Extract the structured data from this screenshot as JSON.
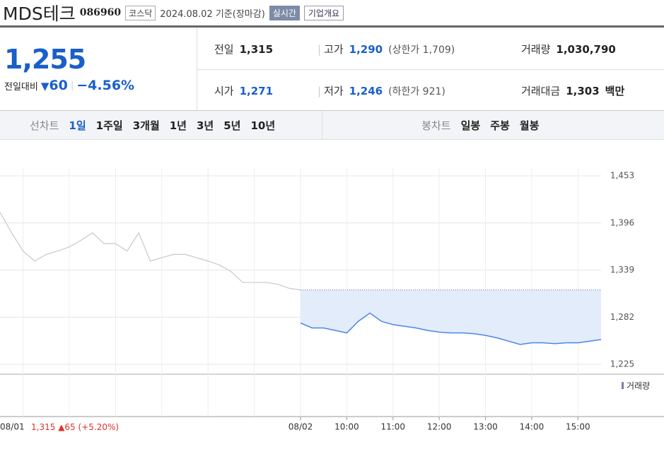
{
  "header": {
    "name": "MDS테크",
    "code": "086960",
    "market": "코스닥",
    "date": "2024.08.02 기준(장마감)",
    "realtime": "실시간",
    "overview": "기업개요"
  },
  "price": {
    "current": "1,255",
    "change_label": "전일대비",
    "change": "60",
    "change_rate": "−4.56%"
  },
  "info": [
    [
      {
        "label": "전일",
        "value": "1,315"
      },
      {
        "label": "고가",
        "value": "1,290",
        "note": "(상한가 1,709)"
      },
      {
        "label": "거래량",
        "value": "1,030,790"
      }
    ],
    [
      {
        "label": "시가",
        "value": "1,271"
      },
      {
        "label": "저가",
        "value": "1,246",
        "note": "(하한가 921)"
      },
      {
        "label": "거래대금",
        "value": "1,303",
        "unit": "백만"
      }
    ]
  ],
  "tabs": {
    "line_label": "선차트",
    "line": [
      "1일",
      "1주일",
      "3개월",
      "1년",
      "3년",
      "5년",
      "10년"
    ],
    "candle_label": "봉차트",
    "candle": [
      "일봉",
      "주봉",
      "월봉"
    ]
  },
  "chart_data": {
    "type": "line",
    "categories": [
      "08/01",
      null,
      null,
      null,
      null,
      null,
      null,
      null,
      null,
      null,
      null,
      null,
      null,
      null,
      null,
      null,
      null,
      null,
      null,
      null,
      null,
      null,
      null,
      null,
      null,
      null,
      "08/02",
      null,
      null,
      null,
      "10:00",
      null,
      null,
      null,
      "11:00",
      null,
      null,
      null,
      "12:00",
      null,
      null,
      null,
      "13:00",
      null,
      null,
      null,
      "14:00",
      null,
      null,
      null,
      "15:00",
      null,
      null
    ],
    "series": [
      {
        "name": "08/01",
        "color": "#c8c8c8",
        "values": [
          1409,
          1384,
          1362,
          1350,
          1358,
          1362,
          1367,
          1375,
          1384,
          1371,
          1371,
          1362,
          1384,
          1350,
          1354,
          1358,
          1358,
          1354,
          1350,
          1345,
          1337,
          1324,
          1324,
          1324,
          1322,
          1317,
          1315,
          null,
          null,
          null,
          null,
          null,
          null,
          null,
          null,
          null,
          null,
          null,
          null,
          null,
          null,
          null,
          null,
          null,
          null,
          null,
          null,
          null,
          null,
          null,
          null,
          null,
          null
        ]
      },
      {
        "name": "08/02",
        "color": "#4a86e8",
        "values": [
          null,
          null,
          null,
          null,
          null,
          null,
          null,
          null,
          null,
          null,
          null,
          null,
          null,
          null,
          null,
          null,
          null,
          null,
          null,
          null,
          null,
          null,
          null,
          null,
          null,
          null,
          1275,
          1269,
          1269,
          1266,
          1263,
          1277,
          1287,
          1277,
          1273,
          1271,
          1269,
          1266,
          1264,
          1263,
          1263,
          1262,
          1260,
          1257,
          1253,
          1249,
          1251,
          1251,
          1250,
          1251,
          1251,
          1253,
          1255
        ]
      }
    ],
    "baseline": 1315,
    "ylim": [
      1225,
      1453
    ],
    "yticks": [
      {
        "value": 1453,
        "label": "1,453"
      },
      {
        "value": 1396,
        "label": "1,396"
      },
      {
        "value": 1339,
        "label": "1,339"
      },
      {
        "value": 1282,
        "label": "1,282"
      },
      {
        "value": 1225,
        "label": "1,225"
      }
    ],
    "grid": true,
    "volume_label": "거래량",
    "prev_note": {
      "value": "1,315",
      "change": "▲65",
      "rate": "(+5.20%)"
    }
  }
}
